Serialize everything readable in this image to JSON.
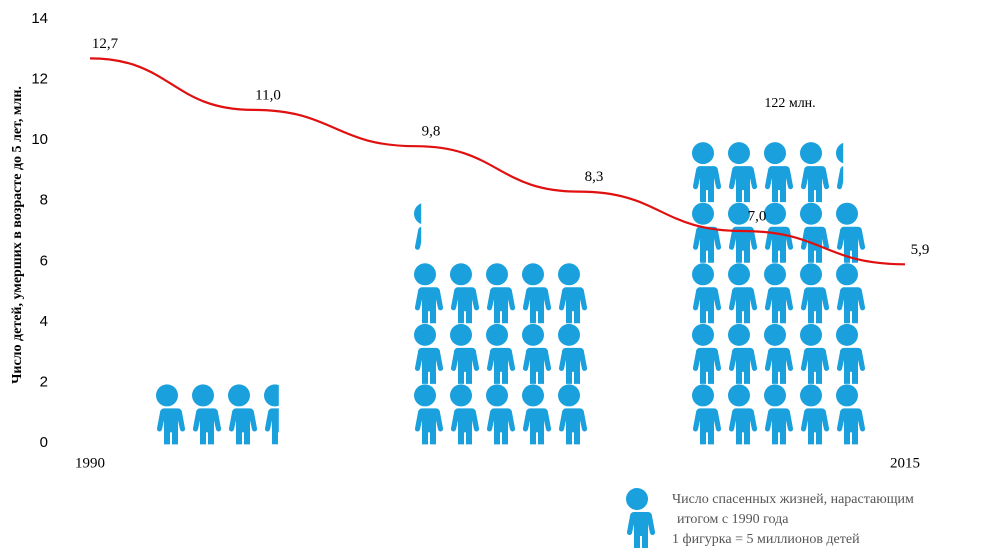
{
  "chart_data": {
    "type": "line",
    "y_label": "Число детей, умерших в возрасте до 5 лет, млн.",
    "x": [
      1990,
      1995,
      2000,
      2005,
      2010,
      2015
    ],
    "xlim": [
      1990,
      2015
    ],
    "xticks": [
      1990,
      2015
    ],
    "ylim": [
      0,
      14
    ],
    "yticks": [
      0,
      2,
      4,
      6,
      8,
      10,
      12,
      14
    ],
    "series": [
      {
        "values": [
          12.7,
          11.0,
          9.8,
          8.3,
          7.0,
          5.9
        ],
        "value_labels": [
          "12,7",
          "11,0",
          "9,8",
          "8,3",
          "7,0",
          "5,9"
        ],
        "color": "#e01010"
      }
    ],
    "pictogram": {
      "values": [
        18,
        77,
        122
      ],
      "unit_value": 5,
      "color": "#1aa0dc",
      "annotation": "122 млн."
    },
    "legend": [
      "Число спасенных жизней, нарастающим",
      "итогом с 1990  года",
      "1 фигурка = 5 миллионов детей"
    ]
  }
}
